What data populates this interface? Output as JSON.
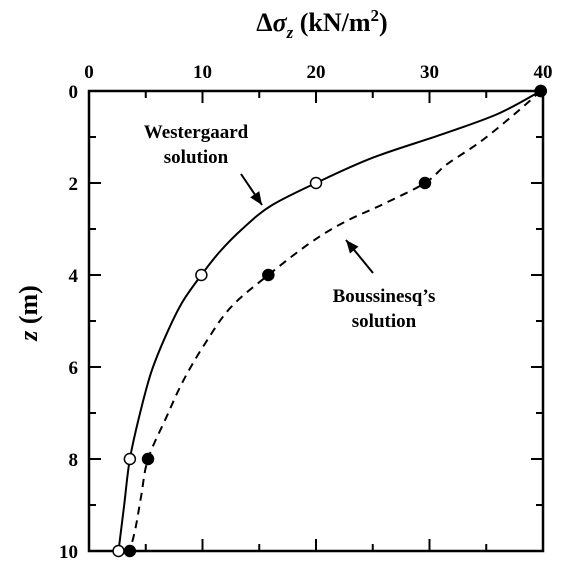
{
  "chart_data": {
    "type": "line",
    "title_parts": {
      "delta": "Δ",
      "sigma": "σ",
      "sub": "z",
      "unit": " (kN/m",
      "sup": "2",
      "close": ")"
    },
    "ylabel_parts": {
      "var": "z",
      "unit": " (m)"
    },
    "xlim": [
      0,
      40
    ],
    "ylim": [
      0,
      10
    ],
    "y_inverted": true,
    "x_axis_position": "top",
    "x_ticks": [
      "0",
      "10",
      "20",
      "30",
      "40"
    ],
    "y_ticks": [
      "0",
      "2",
      "4",
      "6",
      "8",
      "10"
    ],
    "grid": false,
    "series": [
      {
        "name_lines": [
          "Westergaard",
          "solution"
        ],
        "line_style": "solid",
        "marker": "open-circle",
        "points": [
          {
            "x": 39.8,
            "z": 0
          },
          {
            "x": 20,
            "z": 2
          },
          {
            "x": 9.9,
            "z": 4
          },
          {
            "x": 3.6,
            "z": 8
          },
          {
            "x": 2.6,
            "z": 10
          }
        ],
        "curve": [
          [
            39.8,
            0
          ],
          [
            36,
            0.5
          ],
          [
            31,
            0.95
          ],
          [
            25,
            1.45
          ],
          [
            20,
            2
          ],
          [
            16,
            2.5
          ],
          [
            13.5,
            3
          ],
          [
            11.5,
            3.5
          ],
          [
            9.9,
            4
          ],
          [
            8.2,
            4.6
          ],
          [
            6.8,
            5.3
          ],
          [
            5.5,
            6.1
          ],
          [
            4.5,
            7
          ],
          [
            3.6,
            8
          ],
          [
            3.1,
            9
          ],
          [
            2.6,
            10
          ]
        ]
      },
      {
        "name_lines": [
          "Boussinesq’s",
          "solution"
        ],
        "line_style": "dashed",
        "marker": "filled-circle",
        "points": [
          {
            "x": 39.8,
            "z": 0
          },
          {
            "x": 29.6,
            "z": 2
          },
          {
            "x": 15.8,
            "z": 4
          },
          {
            "x": 5.2,
            "z": 8
          },
          {
            "x": 3.6,
            "z": 10
          }
        ],
        "curve": [
          [
            39.8,
            0
          ],
          [
            37.5,
            0.5
          ],
          [
            34.5,
            1.1
          ],
          [
            31.5,
            1.6
          ],
          [
            29.6,
            2
          ],
          [
            26,
            2.45
          ],
          [
            22.5,
            2.85
          ],
          [
            19.5,
            3.3
          ],
          [
            15.8,
            4
          ],
          [
            12.5,
            4.7
          ],
          [
            10.2,
            5.5
          ],
          [
            8.3,
            6.3
          ],
          [
            6.8,
            7.1
          ],
          [
            5.2,
            8
          ],
          [
            4.6,
            8.8
          ],
          [
            4.1,
            9.5
          ],
          [
            3.6,
            10
          ]
        ]
      }
    ]
  }
}
